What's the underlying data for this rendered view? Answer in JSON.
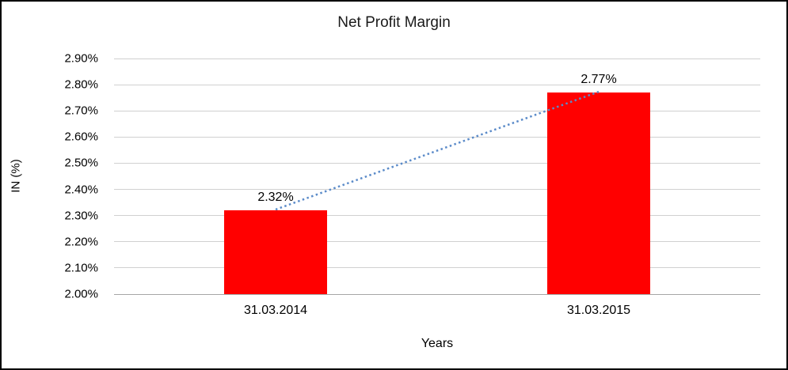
{
  "chart_data": {
    "type": "bar",
    "title": "Net Profit Margin",
    "xlabel": "Years",
    "ylabel": "IN (%)",
    "categories": [
      "31.03.2014",
      "31.03.2015"
    ],
    "values": [
      2.32,
      2.77
    ],
    "data_labels": [
      "2.32%",
      "2.77%"
    ],
    "ylim": [
      2.0,
      2.9
    ],
    "ytick_step": 0.1,
    "yticks": [
      "2.00%",
      "2.10%",
      "2.20%",
      "2.30%",
      "2.40%",
      "2.50%",
      "2.60%",
      "2.70%",
      "2.80%",
      "2.90%"
    ],
    "grid": true,
    "legend_position": "none",
    "bar_color": "#ff0000",
    "trendline_color": "#5b8bc9",
    "gridline_color": "#d0d0d0"
  }
}
